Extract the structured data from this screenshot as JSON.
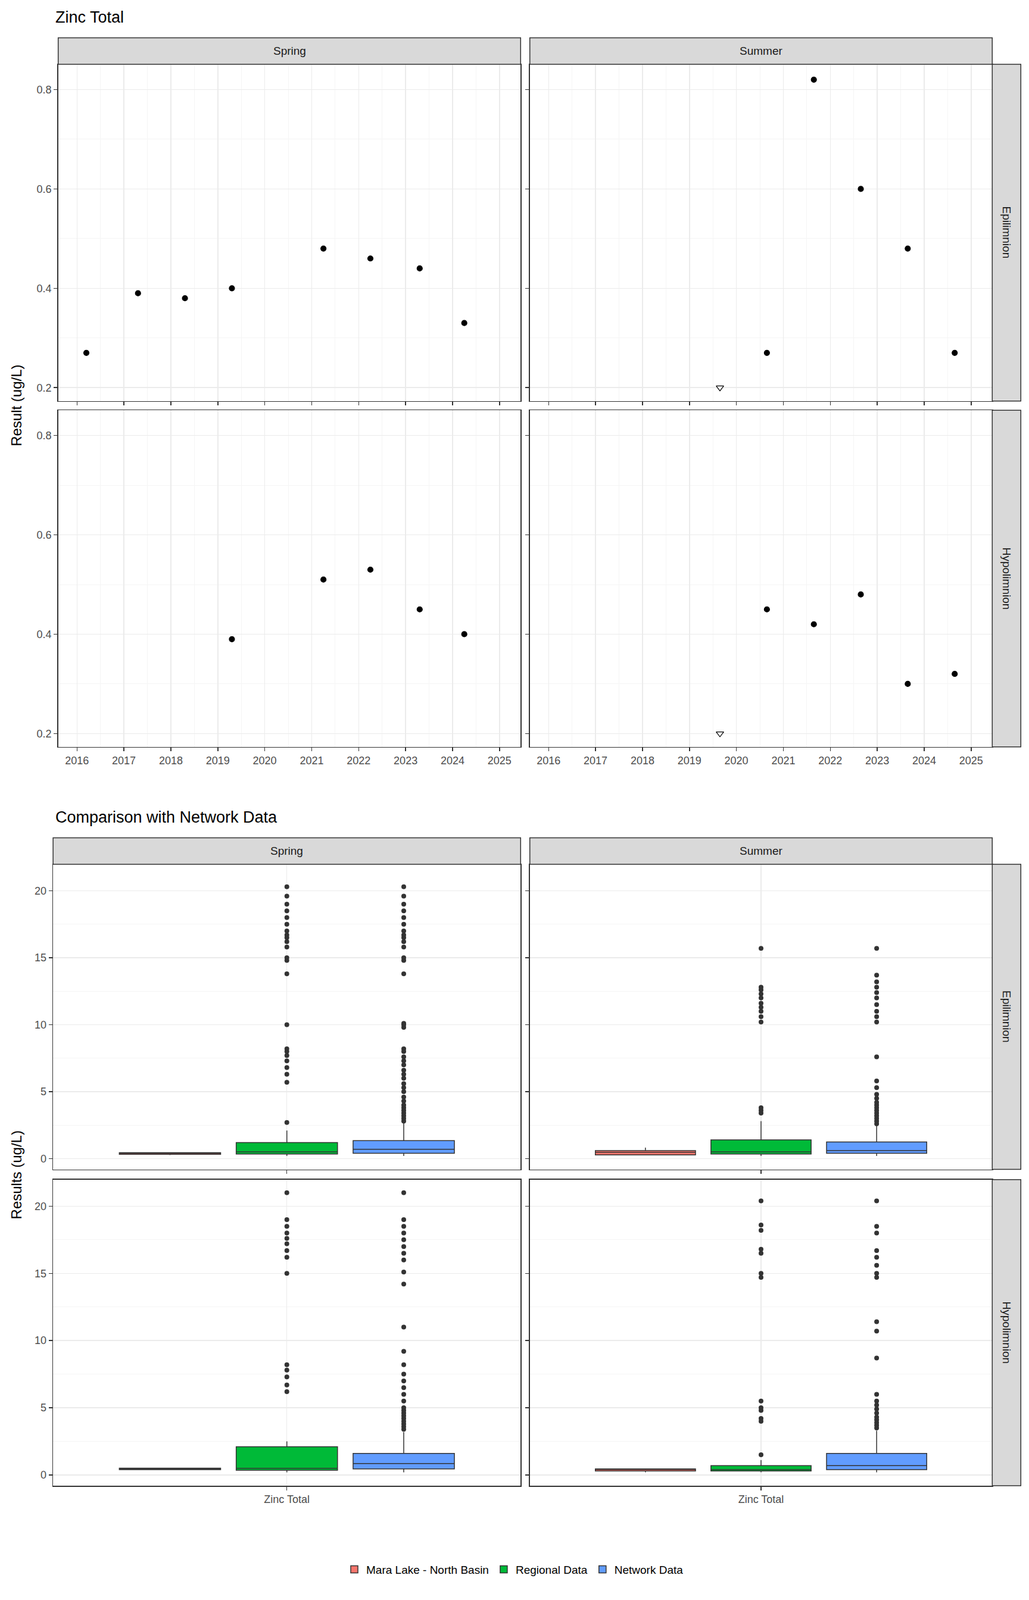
{
  "chart_data": [
    {
      "type": "scatter",
      "title": "Zinc Total",
      "ylabel": "Result (ug/L)",
      "columns": [
        "Spring",
        "Summer"
      ],
      "rows": [
        "Epilimnion",
        "Hypolimnion"
      ],
      "xlim": [
        2015.6,
        2025.45
      ],
      "xticks": [
        2016,
        2017,
        2018,
        2019,
        2020,
        2021,
        2022,
        2023,
        2024,
        2025
      ],
      "ylim": [
        0.173,
        0.851
      ],
      "yticks": [
        0.2,
        0.4,
        0.6,
        0.8
      ],
      "grid": true,
      "color": "#000000",
      "panels": [
        {
          "column": "Spring",
          "row": "Epilimnion",
          "points": {
            "marker": "circle",
            "x": [
              2016.2,
              2017.3,
              2018.3,
              2019.3,
              2021.25,
              2022.25,
              2023.3,
              2024.25
            ],
            "values": [
              0.27,
              0.39,
              0.38,
              0.4,
              0.48,
              0.46,
              0.44,
              0.33
            ]
          },
          "below_detection": {
            "marker": "triangle-down-open",
            "x": [],
            "values": []
          }
        },
        {
          "column": "Summer",
          "row": "Epilimnion",
          "points": {
            "marker": "circle",
            "x": [
              2020.65,
              2021.65,
              2022.65,
              2023.65,
              2024.65
            ],
            "values": [
              0.27,
              0.82,
              0.6,
              0.48,
              0.27
            ]
          },
          "below_detection": {
            "marker": "triangle-down-open",
            "x": [
              2019.65
            ],
            "values": [
              0.2
            ]
          }
        },
        {
          "column": "Spring",
          "row": "Hypolimnion",
          "points": {
            "marker": "circle",
            "x": [
              2019.3,
              2021.25,
              2022.25,
              2023.3,
              2024.25
            ],
            "values": [
              0.39,
              0.51,
              0.53,
              0.45,
              0.4
            ]
          },
          "below_detection": {
            "marker": "triangle-down-open",
            "x": [],
            "values": []
          }
        },
        {
          "column": "Summer",
          "row": "Hypolimnion",
          "points": {
            "marker": "circle",
            "x": [
              2020.65,
              2021.65,
              2022.65,
              2023.65,
              2024.65
            ],
            "values": [
              0.45,
              0.42,
              0.48,
              0.3,
              0.32
            ]
          },
          "below_detection": {
            "marker": "triangle-down-open",
            "x": [
              2019.65
            ],
            "values": [
              0.2
            ]
          }
        }
      ]
    },
    {
      "type": "box",
      "title": "Comparison with Network Data",
      "ylabel": "Results (ug/L)",
      "categories": [
        "Zinc Total"
      ],
      "columns": [
        "Spring",
        "Summer"
      ],
      "rows": [
        "Epilimnion",
        "Hypolimnion"
      ],
      "ylim": [
        -0.8,
        21.98
      ],
      "yticks": [
        0,
        5,
        10,
        15,
        20
      ],
      "grid": true,
      "legend": "bottom",
      "series": [
        {
          "name": "Mara Lake - North Basin",
          "color": "#F8766D"
        },
        {
          "name": "Regional Data",
          "color": "#00BA38"
        },
        {
          "name": "Network Data",
          "color": "#619CFF"
        }
      ],
      "panels": [
        {
          "column": "Spring",
          "row": "Epilimnion",
          "boxes": [
            {
              "q1": 0.33,
              "median": 0.4,
              "q3": 0.45,
              "lower": 0.27,
              "upper": 0.48,
              "outliers": []
            },
            {
              "q1": 0.35,
              "median": 0.5,
              "q3": 1.2,
              "lower": 0.2,
              "upper": 2.1,
              "outliers": [
                2.7,
                5.7,
                6.3,
                6.8,
                7.3,
                7.7,
                8.0,
                8.2,
                10.0,
                13.8,
                14.8,
                15.0,
                15.8,
                16.2,
                16.5,
                16.7,
                17.0,
                17.5,
                18.0,
                18.5,
                19.0,
                19.6,
                20.3
              ]
            },
            {
              "q1": 0.4,
              "median": 0.7,
              "q3": 1.35,
              "lower": 0.2,
              "upper": 2.7,
              "outliers": [
                2.8,
                3.0,
                3.2,
                3.4,
                3.6,
                3.8,
                4.0,
                4.3,
                4.6,
                5.0,
                5.3,
                5.6,
                6.0,
                6.3,
                6.6,
                7.0,
                7.3,
                7.6,
                8.0,
                8.2,
                9.8,
                10.0,
                10.1,
                13.8,
                14.8,
                15.0,
                15.8,
                16.2,
                16.5,
                16.7,
                17.0,
                17.5,
                18.0,
                18.5,
                19.0,
                19.6,
                20.3
              ]
            }
          ]
        },
        {
          "column": "Summer",
          "row": "Epilimnion",
          "boxes": [
            {
              "q1": 0.28,
              "median": 0.48,
              "q3": 0.6,
              "lower": 0.27,
              "upper": 0.82,
              "outliers": []
            },
            {
              "q1": 0.35,
              "median": 0.5,
              "q3": 1.4,
              "lower": 0.2,
              "upper": 2.8,
              "outliers": [
                3.4,
                3.6,
                3.8,
                10.2,
                10.6,
                11.0,
                11.3,
                11.6,
                12.0,
                12.3,
                12.6,
                12.8,
                15.7
              ]
            },
            {
              "q1": 0.4,
              "median": 0.6,
              "q3": 1.25,
              "lower": 0.2,
              "upper": 2.5,
              "outliers": [
                2.6,
                2.8,
                3.0,
                3.2,
                3.4,
                3.6,
                3.8,
                4.0,
                4.2,
                4.5,
                4.8,
                5.3,
                5.8,
                7.6,
                10.2,
                10.6,
                11.0,
                11.5,
                12.0,
                12.4,
                12.8,
                13.2,
                13.7,
                15.7
              ]
            }
          ]
        },
        {
          "column": "Spring",
          "row": "Hypolimnion",
          "boxes": [
            {
              "q1": 0.4,
              "median": 0.45,
              "q3": 0.51,
              "lower": 0.39,
              "upper": 0.53,
              "outliers": []
            },
            {
              "q1": 0.35,
              "median": 0.5,
              "q3": 2.1,
              "lower": 0.2,
              "upper": 2.5,
              "outliers": [
                6.2,
                6.7,
                7.3,
                7.8,
                8.2,
                15.0,
                16.2,
                16.7,
                17.2,
                17.6,
                18.0,
                18.5,
                19.0,
                21.0
              ]
            },
            {
              "q1": 0.45,
              "median": 0.85,
              "q3": 1.6,
              "lower": 0.2,
              "upper": 3.2,
              "outliers": [
                3.4,
                3.6,
                3.8,
                4.0,
                4.2,
                4.4,
                4.6,
                4.8,
                5.0,
                5.5,
                6.0,
                6.5,
                7.0,
                7.5,
                8.2,
                9.2,
                11.0,
                14.2,
                15.1,
                16.0,
                16.5,
                17.0,
                17.5,
                18.0,
                18.5,
                19.0,
                21.0
              ]
            }
          ]
        },
        {
          "column": "Summer",
          "row": "Hypolimnion",
          "boxes": [
            {
              "q1": 0.3,
              "median": 0.42,
              "q3": 0.45,
              "lower": 0.2,
              "upper": 0.48,
              "outliers": []
            },
            {
              "q1": 0.3,
              "median": 0.4,
              "q3": 0.7,
              "lower": 0.2,
              "upper": 1.1,
              "outliers": [
                1.5,
                4.0,
                4.2,
                4.8,
                5.0,
                5.5,
                14.7,
                15.0,
                16.5,
                16.8,
                18.2,
                18.6,
                20.4
              ]
            },
            {
              "q1": 0.4,
              "median": 0.7,
              "q3": 1.6,
              "lower": 0.2,
              "upper": 3.3,
              "outliers": [
                3.5,
                3.7,
                3.9,
                4.1,
                4.3,
                4.6,
                4.9,
                5.2,
                5.5,
                6.0,
                8.7,
                10.7,
                11.4,
                14.7,
                15.0,
                15.6,
                16.2,
                16.7,
                18.0,
                18.5,
                20.4
              ]
            }
          ]
        }
      ]
    }
  ]
}
